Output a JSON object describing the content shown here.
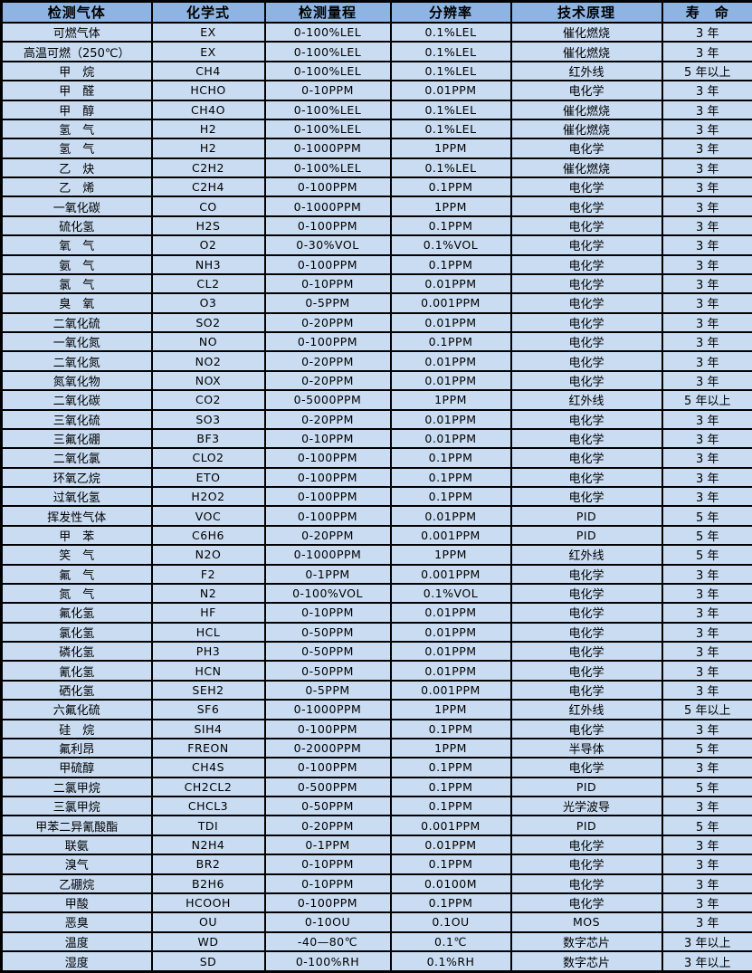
{
  "colors": {
    "header_bg": "#8db4e2",
    "row_bg": "#c9dcf2",
    "border": "#000000",
    "text": "#000000"
  },
  "table": {
    "columns": [
      "检测气体",
      "化学式",
      "检测量程",
      "分辨率",
      "技术原理",
      "寿　命"
    ],
    "rows": [
      [
        "可燃气体",
        "EX",
        "0-100%LEL",
        "0.1%LEL",
        "催化燃烧",
        "3 年"
      ],
      [
        "高温可燃（250℃）",
        "EX",
        "0-100%LEL",
        "0.1%LEL",
        "催化燃烧",
        "3 年"
      ],
      [
        "甲　烷",
        "CH4",
        "0-100%LEL",
        "0.1%LEL",
        "红外线",
        "5 年以上"
      ],
      [
        "甲　醛",
        "HCHO",
        "0-10PPM",
        "0.01PPM",
        "电化学",
        "3 年"
      ],
      [
        "甲　醇",
        "CH4O",
        "0-100%LEL",
        "0.1%LEL",
        "催化燃烧",
        "3 年"
      ],
      [
        "氢　气",
        "H2",
        "0-100%LEL",
        "0.1%LEL",
        "催化燃烧",
        "3 年"
      ],
      [
        "氢　气",
        "H2",
        "0-1000PPM",
        "1PPM",
        "电化学",
        "3 年"
      ],
      [
        "乙　炔",
        "C2H2",
        "0-100%LEL",
        "0.1%LEL",
        "催化燃烧",
        "3 年"
      ],
      [
        "乙　烯",
        "C2H4",
        "0-100PPM",
        "0.1PPM",
        "电化学",
        "3 年"
      ],
      [
        "一氧化碳",
        "CO",
        "0-1000PPM",
        "1PPM",
        "电化学",
        "3 年"
      ],
      [
        "硫化氢",
        "H2S",
        "0-100PPM",
        "0.1PPM",
        "电化学",
        "3 年"
      ],
      [
        "氧　气",
        "O2",
        "0-30%VOL",
        "0.1%VOL",
        "电化学",
        "3 年"
      ],
      [
        "氨　气",
        "NH3",
        "0-100PPM",
        "0.1PPM",
        "电化学",
        "3 年"
      ],
      [
        "氯　气",
        "CL2",
        "0-10PPM",
        "0.01PPM",
        "电化学",
        "3 年"
      ],
      [
        "臭　氧",
        "O3",
        "0-5PPM",
        "0.001PPM",
        "电化学",
        "3 年"
      ],
      [
        "二氧化硫",
        "SO2",
        "0-20PPM",
        "0.01PPM",
        "电化学",
        "3 年"
      ],
      [
        "一氧化氮",
        "NO",
        "0-100PPM",
        "0.1PPM",
        "电化学",
        "3 年"
      ],
      [
        "二氧化氮",
        "NO2",
        "0-20PPM",
        "0.01PPM",
        "电化学",
        "3 年"
      ],
      [
        "氮氧化物",
        "NOX",
        "0-20PPM",
        "0.01PPM",
        "电化学",
        "3 年"
      ],
      [
        "二氧化碳",
        "CO2",
        "0-5000PPM",
        "1PPM",
        "红外线",
        "5 年以上"
      ],
      [
        "三氧化硫",
        "SO3",
        "0-20PPM",
        "0.01PPM",
        "电化学",
        "3 年"
      ],
      [
        "三氟化硼",
        "BF3",
        "0-10PPM",
        "0.01PPM",
        "电化学",
        "3 年"
      ],
      [
        "二氧化氯",
        "CLO2",
        "0-100PPM",
        "0.1PPM",
        "电化学",
        "3 年"
      ],
      [
        "环氧乙烷",
        "ETO",
        "0-100PPM",
        "0.1PPM",
        "电化学",
        "3 年"
      ],
      [
        "过氧化氢",
        "H2O2",
        "0-100PPM",
        "0.1PPM",
        "电化学",
        "3 年"
      ],
      [
        "挥发性气体",
        "VOC",
        "0-100PPM",
        "0.01PPM",
        "PID",
        "5 年"
      ],
      [
        "甲　苯",
        "C6H6",
        "0-20PPM",
        "0.001PPM",
        "PID",
        "5 年"
      ],
      [
        "笑　气",
        "N2O",
        "0-1000PPM",
        "1PPM",
        "红外线",
        "5 年"
      ],
      [
        "氟　气",
        "F2",
        "0-1PPM",
        "0.001PPM",
        "电化学",
        "3 年"
      ],
      [
        "氮　气",
        "N2",
        "0-100%VOL",
        "0.1%VOL",
        "电化学",
        "3 年"
      ],
      [
        "氟化氢",
        "HF",
        "0-10PPM",
        "0.01PPM",
        "电化学",
        "3 年"
      ],
      [
        "氯化氢",
        "HCL",
        "0-50PPM",
        "0.01PPM",
        "电化学",
        "3 年"
      ],
      [
        "磷化氢",
        "PH3",
        "0-50PPM",
        "0.01PPM",
        "电化学",
        "3 年"
      ],
      [
        "氰化氢",
        "HCN",
        "0-50PPM",
        "0.01PPM",
        "电化学",
        "3 年"
      ],
      [
        "硒化氢",
        "SEH2",
        "0-5PPM",
        "0.001PPM",
        "电化学",
        "3 年"
      ],
      [
        "六氟化硫",
        "SF6",
        "0-1000PPM",
        "1PPM",
        "红外线",
        "5 年以上"
      ],
      [
        "硅　烷",
        "SIH4",
        "0-100PPM",
        "0.1PPM",
        "电化学",
        "3 年"
      ],
      [
        "氟利昂",
        "FREON",
        "0-2000PPM",
        "1PPM",
        "半导体",
        "5 年"
      ],
      [
        "甲硫醇",
        "CH4S",
        "0-100PPM",
        "0.1PPM",
        "电化学",
        "3 年"
      ],
      [
        "二氯甲烷",
        "CH2CL2",
        "0-500PPM",
        "0.1PPM",
        "PID",
        "5 年"
      ],
      [
        "三氯甲烷",
        "CHCL3",
        "0-50PPM",
        "0.1PPM",
        "光学波导",
        "3 年"
      ],
      [
        "甲苯二异氰酸酯",
        "TDI",
        "0-20PPM",
        "0.001PPM",
        "PID",
        "5 年"
      ],
      [
        "联氨",
        "N2H4",
        "0-1PPM",
        "0.01PPM",
        "电化学",
        "3 年"
      ],
      [
        "溴气",
        "BR2",
        "0-10PPM",
        "0.1PPM",
        "电化学",
        "3 年"
      ],
      [
        "乙硼烷",
        "B2H6",
        "0-10PPM",
        "0.0100M",
        "电化学",
        "3 年"
      ],
      [
        "甲酸",
        "HCOOH",
        "0-100PPM",
        "0.1PPM",
        "电化学",
        "3 年"
      ],
      [
        "恶臭",
        "OU",
        "0-10OU",
        "0.1OU",
        "MOS",
        "3 年"
      ],
      [
        "温度",
        "WD",
        "-40—80℃",
        "0.1℃",
        "数字芯片",
        "3 年以上"
      ],
      [
        "湿度",
        "SD",
        "0-100%RH",
        "0.1%RH",
        "数字芯片",
        "3 年以上"
      ]
    ]
  }
}
